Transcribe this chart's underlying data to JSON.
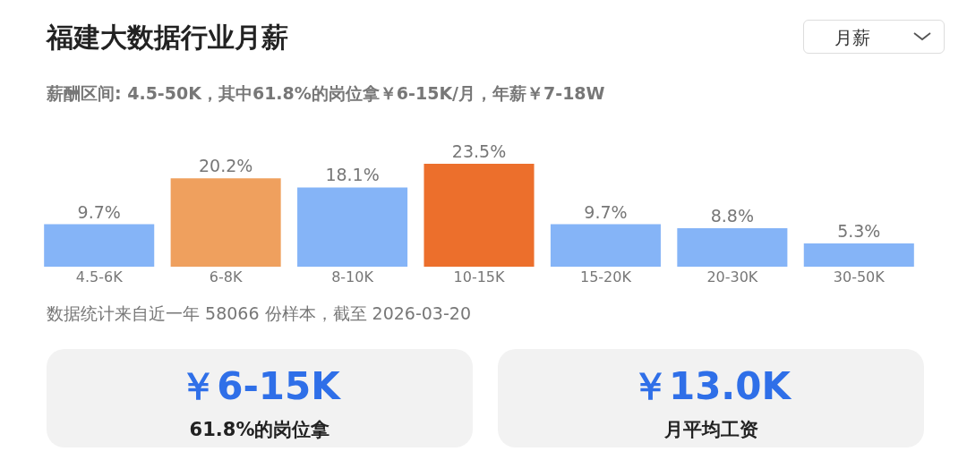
{
  "chart_data": {
    "type": "bar",
    "title": "福建大数据行业月薪",
    "subtitle": "薪酬区间: 4.5-50K，其中61.8%的岗位拿￥6-15K/月，年薪￥7-18W",
    "categories": [
      "4.5-6K",
      "6-8K",
      "8-10K",
      "10-15K",
      "15-20K",
      "20-30K",
      "30-50K"
    ],
    "values": [
      9.7,
      20.2,
      18.1,
      23.5,
      9.7,
      8.8,
      5.3
    ],
    "value_labels": [
      "9.7%",
      "20.2%",
      "18.1%",
      "23.5%",
      "9.7%",
      "8.8%",
      "5.3%"
    ],
    "colors": [
      "#85b4f7",
      "#efa05e",
      "#85b4f7",
      "#ec6f2c",
      "#85b4f7",
      "#85b4f7",
      "#85b4f7"
    ],
    "annotations": [
      "数据统计来自近一年 58066 份样本，截至 2026-03-20",
      "￥6-15K",
      "61.8%的岗位拿",
      "￥13.0K",
      "月平均工资",
      "月薪"
    ]
  }
}
